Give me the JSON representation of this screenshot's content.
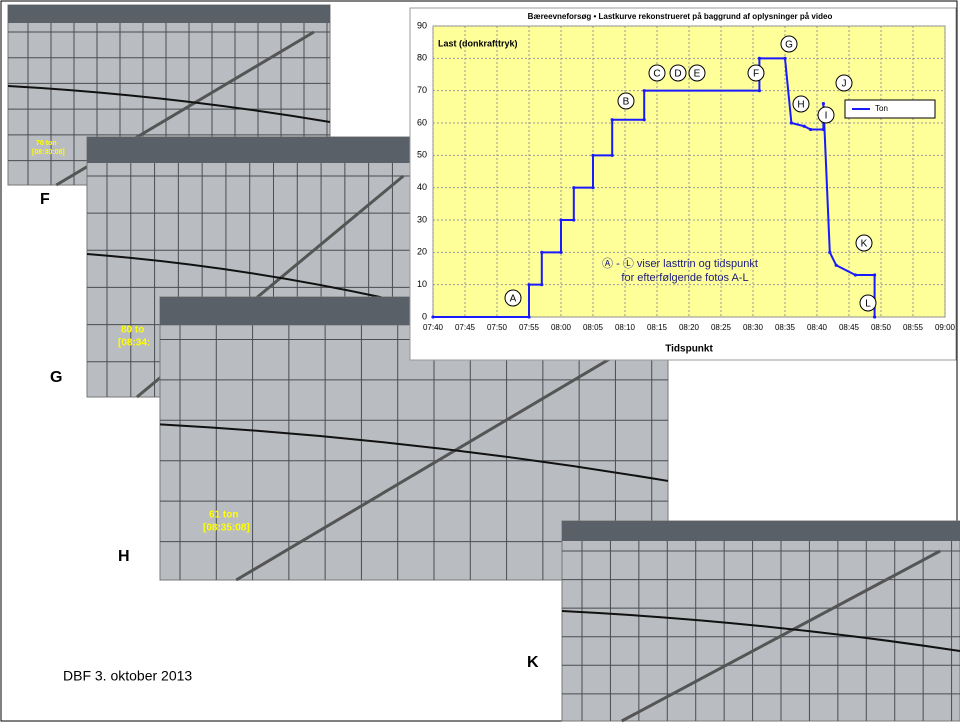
{
  "chart_data": {
    "type": "line",
    "title": "Bæreevneforsøg • Lastkurve rekonstrueret på baggrund af oplysninger på video",
    "y_label": "Last (donkrafttryk)",
    "x_label": "Tidspunkt",
    "xlim": [
      "07:40",
      "09:00"
    ],
    "xticks": [
      "07:40",
      "07:45",
      "07:50",
      "07:55",
      "08:00",
      "08:05",
      "08:10",
      "08:15",
      "08:20",
      "08:25",
      "08:30",
      "08:35",
      "08:40",
      "08:45",
      "08:50",
      "08:55",
      "09:00"
    ],
    "ylim": [
      0,
      90
    ],
    "yticks": [
      0,
      10,
      20,
      30,
      40,
      50,
      60,
      70,
      80,
      90
    ],
    "grid": true,
    "x": [
      "07:40",
      "07:55",
      "07:55",
      "07:57",
      "07:57",
      "08:00",
      "08:00",
      "08:02",
      "08:02",
      "08:05",
      "08:05",
      "08:08",
      "08:08",
      "08:13",
      "08:13",
      "08:31",
      "08:31",
      "08:35",
      "08:36",
      "08:38",
      "08:39",
      "08:41",
      "08:41",
      "08:42",
      "08:43",
      "08:46",
      "08:49",
      "08:49"
    ],
    "series": [
      {
        "name": "Ton",
        "color": "#1a1aff",
        "values": [
          0,
          0,
          10,
          10,
          20,
          20,
          30,
          30,
          40,
          40,
          50,
          50,
          61,
          61,
          70,
          70,
          80,
          80,
          60,
          59,
          58,
          58,
          66,
          20,
          16,
          13,
          13,
          0
        ]
      }
    ],
    "annotations": [
      "A",
      "B",
      "C",
      "D",
      "E",
      "F",
      "G",
      "H",
      "I",
      "J",
      "K",
      "L"
    ],
    "note": [
      "Ⓐ - Ⓛ viser lasttrin og tidspunkt",
      "for efterfølgende fotos A-L"
    ]
  },
  "slide": {
    "photo_labels": [
      "F",
      "G",
      "H",
      "K"
    ],
    "photo_captions": [
      [
        "70 ton",
        "[08:30:08]"
      ],
      [
        "80 to",
        "[08:34:"
      ],
      [
        "61 ton",
        "[08:35:08]"
      ]
    ],
    "footer": "DBF 3. oktober 2013"
  }
}
